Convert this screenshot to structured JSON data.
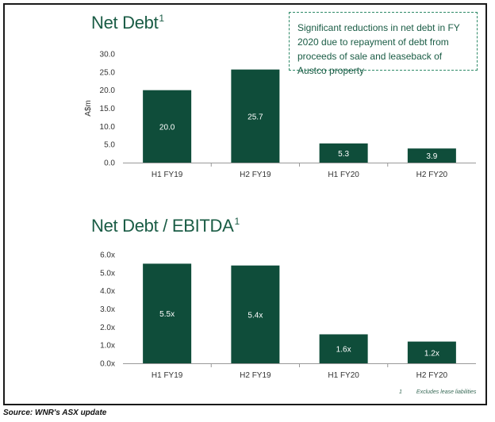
{
  "colors": {
    "bar": "#0f4d3a",
    "title": "#1a5c45",
    "axis": "#999999"
  },
  "callout_text": "Significant reductions in net debt in FY 2020 due to repayment of debt from proceeds of sale and leaseback of Austco property",
  "footnote": {
    "number": "1",
    "text": "Excludes lease liabilities"
  },
  "source": "Source: WNR's ASX update",
  "chart_data": [
    {
      "type": "bar",
      "title": "Net Debt",
      "title_sup": "1",
      "ylabel": "A$m",
      "categories": [
        "H1 FY19",
        "H2 FY19",
        "H1 FY20",
        "H2 FY20"
      ],
      "values": [
        20.0,
        25.7,
        5.3,
        3.9
      ],
      "value_labels": [
        "20.0",
        "25.7",
        "5.3",
        "3.9"
      ],
      "ylim": [
        0,
        30
      ],
      "yticks": [
        0,
        5,
        10,
        15,
        20,
        25,
        30
      ],
      "ytick_labels": [
        "0.0",
        "5.0",
        "10.0",
        "15.0",
        "20.0",
        "25.0",
        "30.0"
      ]
    },
    {
      "type": "bar",
      "title": "Net Debt / EBITDA",
      "title_sup": "1",
      "ylabel": "",
      "categories": [
        "H1 FY19",
        "H2 FY19",
        "H1 FY20",
        "H2 FY20"
      ],
      "values": [
        5.5,
        5.4,
        1.6,
        1.2
      ],
      "value_labels": [
        "5.5x",
        "5.4x",
        "1.6x",
        "1.2x"
      ],
      "ylim": [
        0,
        6
      ],
      "yticks": [
        0,
        1,
        2,
        3,
        4,
        5,
        6
      ],
      "ytick_labels": [
        "0.0x",
        "1.0x",
        "2.0x",
        "3.0x",
        "4.0x",
        "5.0x",
        "6.0x"
      ]
    }
  ]
}
